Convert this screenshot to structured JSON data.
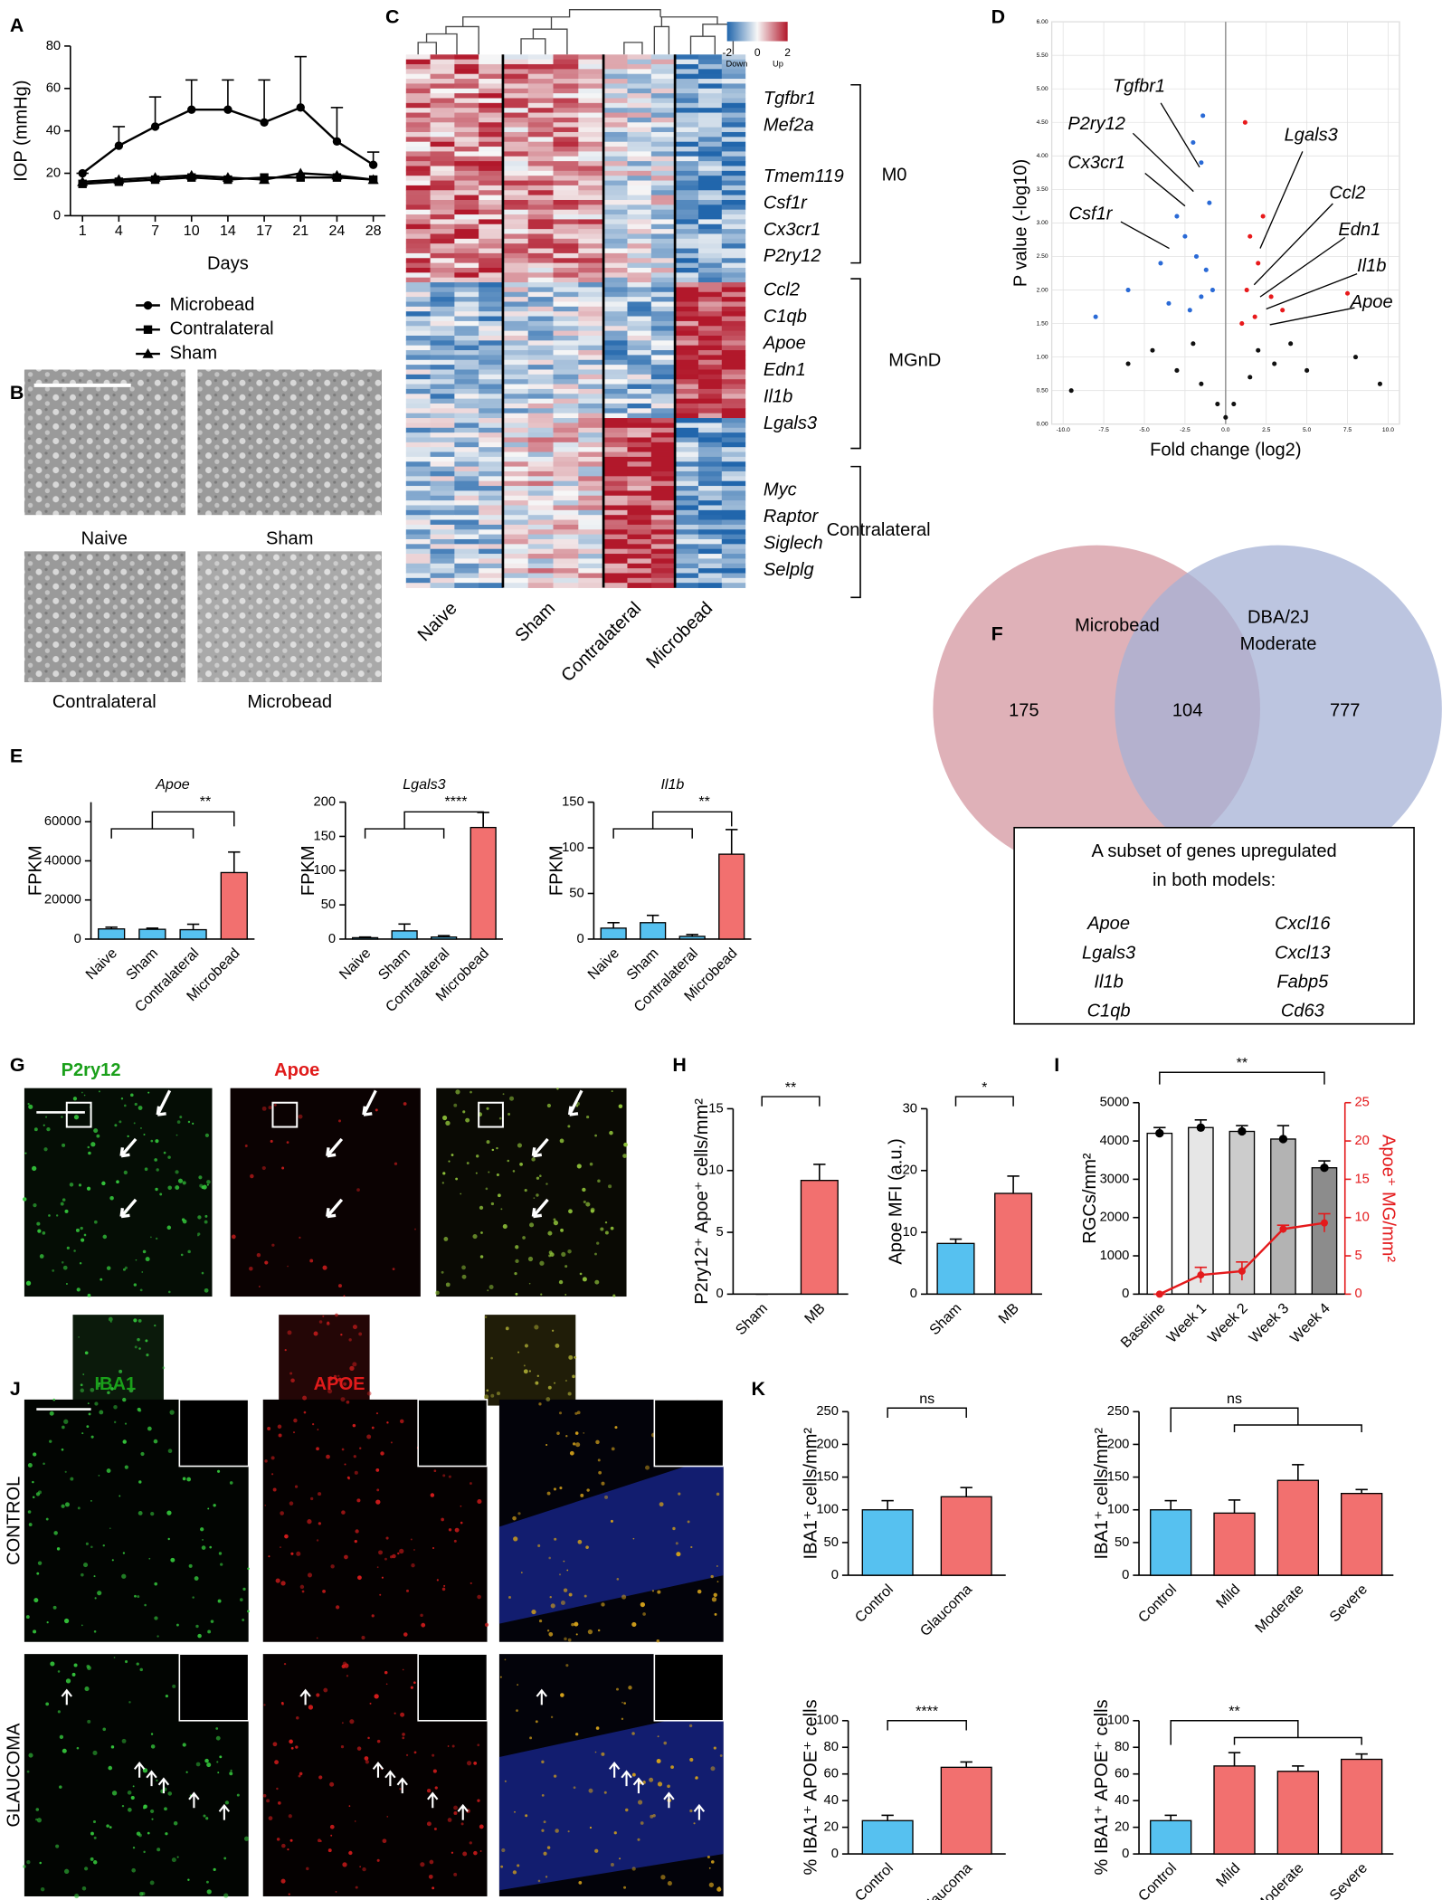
{
  "panel_labels": [
    "A",
    "B",
    "C",
    "D",
    "E",
    "F",
    "G",
    "H",
    "I",
    "J",
    "K"
  ],
  "micrographs": {
    "labels": [
      "Naive",
      "Sham",
      "Contralateral",
      "Microbead"
    ]
  },
  "heatmap": {
    "colorbar_ticks": [
      -2,
      0,
      2
    ],
    "colorbar_labels": [
      "Down",
      "Up"
    ],
    "columns": [
      "Naive",
      "Sham",
      "Contralateral",
      "Microbead"
    ],
    "clusters": [
      {
        "name": "M0",
        "genes": [
          "Tgfbr1",
          "Mef2a",
          "Tmem119",
          "Csf1r",
          "Cx3cr1",
          "P2ry12"
        ]
      },
      {
        "name": "MGnD",
        "genes": [
          "Ccl2",
          "C1qb",
          "Apoe",
          "Edn1",
          "Il1b",
          "Lgals3"
        ]
      },
      {
        "name": "Contralateral",
        "genes": [
          "Myc",
          "Raptor",
          "Siglech",
          "Selplg"
        ]
      }
    ]
  },
  "venn": {
    "set_a": "Microbead",
    "set_b_lines": [
      "DBA/2J",
      "Moderate"
    ],
    "only_a": 175,
    "both": 104,
    "only_b": 777,
    "box_lines": [
      "A subset of genes upregulated",
      "in both models:"
    ],
    "genes": [
      [
        "Apoe",
        "Lgals3",
        "Il1b",
        "C1qb"
      ],
      [
        "Cxcl16",
        "Cxcl13",
        "Fabp5",
        "Cd63"
      ]
    ]
  },
  "stains_g": [
    "P2ry12",
    "Apoe"
  ],
  "stains_j": [
    "IBA1",
    "APOE"
  ],
  "rows_j": [
    "CONTROL",
    "GLAUCOMA"
  ],
  "chart_data": [
    {
      "type": "line",
      "ylabel": "IOP (mmHg)",
      "xlabel": "Days",
      "categories": [
        "1",
        "4",
        "7",
        "10",
        "14",
        "17",
        "21",
        "24",
        "28"
      ],
      "ylim": [
        0,
        80
      ],
      "yticks": [
        0,
        20,
        40,
        60,
        80
      ],
      "series": [
        {
          "name": "Microbead",
          "marker": "circle",
          "color": "#000000",
          "values": [
            20,
            33,
            42,
            50,
            50,
            44,
            51,
            35,
            24
          ],
          "errors": [
            0,
            9,
            14,
            14,
            14,
            20,
            24,
            16,
            6
          ]
        },
        {
          "name": "Contralateral",
          "marker": "square",
          "color": "#000000",
          "values": [
            15,
            16,
            17,
            18,
            17,
            18,
            18,
            18,
            17
          ]
        },
        {
          "name": "Sham",
          "marker": "triangle",
          "color": "#000000",
          "values": [
            16,
            17,
            18,
            19,
            18,
            17,
            20,
            19,
            17
          ]
        }
      ]
    },
    {
      "type": "bar",
      "title": "Apoe",
      "ylabel": "FPKM",
      "categories": [
        "Naive",
        "Sham",
        "Contralateral",
        "Microbead"
      ],
      "values": [
        5200,
        5000,
        4800,
        34000
      ],
      "errors": [
        900,
        600,
        2800,
        10500
      ],
      "colors": [
        "#56c1f0",
        "#56c1f0",
        "#56c1f0",
        "#f2706f"
      ],
      "ylim": [
        0,
        70000
      ],
      "yticks": [
        0,
        20000,
        40000,
        60000
      ],
      "significance": "**"
    },
    {
      "type": "bar",
      "title": "Lgals3",
      "ylabel": "FPKM",
      "categories": [
        "Naive",
        "Sham",
        "Contralateral",
        "Microbead"
      ],
      "values": [
        2,
        12,
        3,
        163
      ],
      "errors": [
        1,
        10,
        2,
        22
      ],
      "colors": [
        "#56c1f0",
        "#56c1f0",
        "#56c1f0",
        "#f2706f"
      ],
      "ylim": [
        0,
        200
      ],
      "yticks": [
        0,
        50,
        100,
        150,
        200
      ],
      "significance": "****"
    },
    {
      "type": "bar",
      "title": "Il1b",
      "ylabel": "FPKM",
      "categories": [
        "Naive",
        "Sham",
        "Contralateral",
        "Microbead"
      ],
      "values": [
        12,
        18,
        3,
        93
      ],
      "errors": [
        6,
        8,
        2,
        27
      ],
      "colors": [
        "#56c1f0",
        "#56c1f0",
        "#56c1f0",
        "#f2706f"
      ],
      "ylim": [
        0,
        150
      ],
      "yticks": [
        0,
        50,
        100,
        150
      ],
      "significance": "**"
    },
    {
      "type": "scatter",
      "ylabel": "P value (-log10)",
      "xlabel": "Fold change (log2)",
      "xlim": [
        -10.7,
        10.7
      ],
      "ylim": [
        0,
        6
      ],
      "xticks": [
        {
          "value": -10,
          "label": "-10.0"
        },
        -7.5,
        {
          "value": -5,
          "label": "-5.0"
        },
        -2.5,
        {
          "value": 0,
          "label": "0.0"
        },
        2.5,
        {
          "value": 5,
          "label": "5.0"
        },
        7.5,
        {
          "value": 10,
          "label": "10.0"
        }
      ],
      "yticks": [
        {
          "value": 0,
          "label": "0.00"
        },
        {
          "value": 0.5,
          "label": "0.50"
        },
        {
          "value": 1,
          "label": "1.00"
        },
        {
          "value": 1.5,
          "label": "1.50"
        },
        {
          "value": 2,
          "label": "2.00"
        },
        {
          "value": 2.5,
          "label": "2.50"
        },
        {
          "value": 3,
          "label": "3.00"
        },
        {
          "value": 3.5,
          "label": "3.50"
        },
        {
          "value": 4,
          "label": "4.00"
        },
        {
          "value": 4.5,
          "label": "4.50"
        },
        {
          "value": 5,
          "label": "5.00"
        },
        {
          "value": 5.5,
          "label": "5.50"
        },
        {
          "value": 6,
          "label": "6.00"
        }
      ],
      "grid": true,
      "series": [
        {
          "color": "#2a6ad6",
          "x": [
            -2,
            -1.5,
            -3,
            -2.5,
            -1.8,
            -1.2,
            -4,
            -6,
            -8,
            -1.5,
            -2.2,
            -3.5,
            -1,
            -0.8,
            -1.4
          ],
          "values": [
            4.2,
            3.9,
            3.1,
            2.8,
            2.5,
            2.3,
            2.4,
            2.0,
            1.6,
            1.9,
            1.7,
            1.8,
            3.3,
            2.0,
            4.6
          ]
        },
        {
          "color": "#e8191b",
          "x": [
            1.2,
            1.5,
            2,
            1.3,
            2.8,
            1.8,
            3.5,
            1,
            2.3,
            7.5
          ],
          "values": [
            4.5,
            2.8,
            2.4,
            2.0,
            1.9,
            1.6,
            1.7,
            1.5,
            3.1,
            1.95
          ]
        },
        {
          "color": "#111111",
          "x": [
            -9.5,
            -6,
            -3,
            -1.5,
            -0.5,
            0.5,
            1.5,
            3,
            5,
            8,
            9.5,
            -2,
            2,
            0,
            -4.5,
            4
          ],
          "values": [
            0.5,
            0.9,
            0.8,
            0.6,
            0.3,
            0.3,
            0.7,
            0.9,
            0.8,
            1.0,
            0.6,
            1.2,
            1.1,
            0.1,
            1.1,
            1.2
          ]
        }
      ],
      "annotations": [
        "Tgfbr1",
        "P2ry12",
        "Cx3cr1",
        "Csf1r",
        "Lgals3",
        "Ccl2",
        "Edn1",
        "Il1b",
        "Apoe"
      ]
    },
    {
      "type": "bar",
      "ylabel": "P2ry12⁺ Apoe⁺ cells/mm²",
      "categories": [
        "Sham",
        "MB"
      ],
      "values": [
        0,
        9.2
      ],
      "errors": [
        0,
        1.3
      ],
      "colors": [
        "#56c1f0",
        "#f2706f"
      ],
      "ylim": [
        0,
        15
      ],
      "yticks": [
        0,
        5,
        10,
        15
      ],
      "significance": "**"
    },
    {
      "type": "bar",
      "ylabel": "Apoe MFI (a.u.)",
      "categories": [
        "Sham",
        "MB"
      ],
      "values": [
        8.2,
        16.3
      ],
      "errors": [
        0.7,
        2.8
      ],
      "colors": [
        "#56c1f0",
        "#f2706f"
      ],
      "ylim": [
        0,
        30
      ],
      "yticks": [
        0,
        10,
        20,
        30
      ],
      "significance": "*"
    },
    {
      "type": "bar_line",
      "ylabel": "RGCs/mm²",
      "y2label": "Apoe⁺ MG/mm²",
      "categories": [
        "Baseline",
        "Week 1",
        "Week 2",
        "Week 3",
        "Week 4"
      ],
      "bar_colors": [
        "#ffffff",
        "#e6e6e6",
        "#cccccc",
        "#b3b3b3",
        "#8c8c8c"
      ],
      "ylim": [
        0,
        5000
      ],
      "yticks": [
        0,
        1000,
        2000,
        3000,
        4000,
        5000
      ],
      "y2lim": [
        0,
        25
      ],
      "y2ticks": [
        0,
        5,
        10,
        15,
        20,
        25
      ],
      "series": [
        {
          "color": "#000000",
          "values": [
            4200,
            4350,
            4250,
            4050,
            3300
          ],
          "errors": [
            150,
            200,
            150,
            350,
            180
          ]
        },
        {
          "color": "#e41a1c",
          "axis": "y2",
          "values": [
            0,
            2.5,
            3,
            8.5,
            9.3
          ],
          "errors": [
            0,
            1,
            1.2,
            0.5,
            1.2
          ]
        }
      ],
      "significance": "**"
    },
    {
      "type": "bar",
      "ylabel": "IBA1⁺ cells/mm²",
      "categories": [
        "Control",
        "Glaucoma"
      ],
      "values": [
        100,
        120
      ],
      "errors": [
        14,
        14
      ],
      "colors": [
        "#56c1f0",
        "#f2706f"
      ],
      "ylim": [
        0,
        250
      ],
      "yticks": [
        0,
        50,
        100,
        150,
        200,
        250
      ],
      "significance": "ns"
    },
    {
      "type": "bar",
      "ylabel": "IBA1⁺ cells/mm²",
      "categories": [
        "Control",
        "Mild",
        "Moderate",
        "Severe"
      ],
      "values": [
        100,
        95,
        145,
        125
      ],
      "errors": [
        14,
        20,
        24,
        6
      ],
      "colors": [
        "#56c1f0",
        "#f2706f",
        "#f2706f",
        "#f2706f"
      ],
      "ylim": [
        0,
        250
      ],
      "yticks": [
        0,
        50,
        100,
        150,
        200,
        250
      ],
      "significance": "ns"
    },
    {
      "type": "bar",
      "ylabel": "% IBA1⁺ APOE⁺ cells",
      "categories": [
        "Control",
        "Glaucoma"
      ],
      "values": [
        25,
        65
      ],
      "errors": [
        4,
        4
      ],
      "colors": [
        "#56c1f0",
        "#f2706f"
      ],
      "ylim": [
        0,
        100
      ],
      "yticks": [
        0,
        20,
        40,
        60,
        80,
        100
      ],
      "significance": "****"
    },
    {
      "type": "bar",
      "ylabel": "% IBA1⁺ APOE⁺ cells",
      "categories": [
        "Control",
        "Mild",
        "Moderate",
        "Severe"
      ],
      "values": [
        25,
        66,
        62,
        71
      ],
      "errors": [
        4,
        10,
        4,
        4
      ],
      "colors": [
        "#56c1f0",
        "#f2706f",
        "#f2706f",
        "#f2706f"
      ],
      "ylim": [
        0,
        100
      ],
      "yticks": [
        0,
        20,
        40,
        60,
        80,
        100
      ],
      "significance": "**"
    }
  ]
}
